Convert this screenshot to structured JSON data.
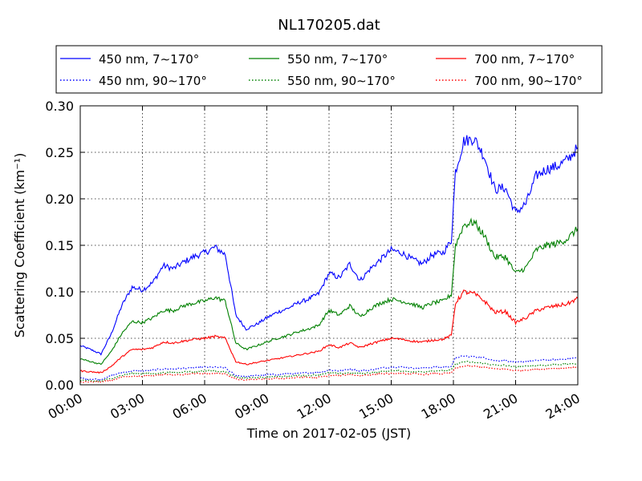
{
  "chart_data": {
    "type": "line",
    "title": "NL170205.dat",
    "xlabel": "Time on 2017-02-05 (JST)",
    "ylabel": "Scattering Coefficient (km⁻¹)",
    "x_unit": "hour",
    "xlim": [
      0,
      24
    ],
    "ylim": [
      0,
      0.3
    ],
    "x_tick_labels": [
      "00:00",
      "03:00",
      "06:00",
      "09:00",
      "12:00",
      "15:00",
      "18:00",
      "21:00",
      "24:00"
    ],
    "y_tick_labels": [
      "0.00",
      "0.05",
      "0.10",
      "0.15",
      "0.20",
      "0.25",
      "0.30"
    ],
    "grid": true,
    "legend_position": "top",
    "x": [
      0,
      0.5,
      1,
      1.5,
      2,
      2.5,
      3,
      3.5,
      4,
      4.5,
      5,
      5.5,
      6,
      6.5,
      7,
      7.5,
      8,
      8.5,
      9,
      9.5,
      10,
      10.5,
      11,
      11.5,
      12,
      12.5,
      13,
      13.5,
      14,
      14.5,
      15,
      15.5,
      16,
      16.5,
      17,
      17.5,
      17.9,
      18.1,
      18.5,
      19,
      19.5,
      20,
      20.5,
      21,
      21.5,
      22,
      22.5,
      23,
      23.5,
      24
    ],
    "series": [
      {
        "name": "450 nm, 7∼170°",
        "color": "#0000ff",
        "style": "solid",
        "values": [
          0.042,
          0.038,
          0.033,
          0.055,
          0.085,
          0.105,
          0.102,
          0.11,
          0.128,
          0.125,
          0.132,
          0.138,
          0.142,
          0.148,
          0.14,
          0.075,
          0.06,
          0.065,
          0.072,
          0.078,
          0.082,
          0.088,
          0.092,
          0.098,
          0.12,
          0.115,
          0.13,
          0.112,
          0.125,
          0.135,
          0.145,
          0.142,
          0.135,
          0.13,
          0.14,
          0.142,
          0.155,
          0.23,
          0.262,
          0.265,
          0.245,
          0.21,
          0.212,
          0.185,
          0.195,
          0.225,
          0.232,
          0.235,
          0.242,
          0.255
        ]
      },
      {
        "name": "450 nm, 90∼170°",
        "color": "#0000ff",
        "style": "dotted",
        "values": [
          0.007,
          0.006,
          0.006,
          0.01,
          0.013,
          0.015,
          0.015,
          0.016,
          0.017,
          0.017,
          0.018,
          0.018,
          0.019,
          0.019,
          0.018,
          0.01,
          0.009,
          0.01,
          0.011,
          0.011,
          0.012,
          0.012,
          0.013,
          0.013,
          0.016,
          0.015,
          0.017,
          0.015,
          0.016,
          0.018,
          0.019,
          0.019,
          0.018,
          0.018,
          0.019,
          0.019,
          0.02,
          0.029,
          0.031,
          0.03,
          0.029,
          0.026,
          0.026,
          0.024,
          0.025,
          0.026,
          0.027,
          0.027,
          0.028,
          0.029
        ]
      },
      {
        "name": "550 nm, 7∼170°",
        "color": "#008000",
        "style": "solid",
        "values": [
          0.028,
          0.025,
          0.022,
          0.036,
          0.055,
          0.068,
          0.067,
          0.072,
          0.08,
          0.08,
          0.085,
          0.088,
          0.09,
          0.094,
          0.09,
          0.045,
          0.038,
          0.042,
          0.046,
          0.05,
          0.053,
          0.057,
          0.06,
          0.064,
          0.08,
          0.075,
          0.085,
          0.073,
          0.082,
          0.088,
          0.092,
          0.09,
          0.087,
          0.083,
          0.088,
          0.09,
          0.097,
          0.15,
          0.172,
          0.175,
          0.16,
          0.137,
          0.138,
          0.12,
          0.126,
          0.145,
          0.15,
          0.152,
          0.157,
          0.168
        ]
      },
      {
        "name": "550 nm, 90∼170°",
        "color": "#008000",
        "style": "dotted",
        "values": [
          0.005,
          0.004,
          0.004,
          0.007,
          0.01,
          0.012,
          0.012,
          0.012,
          0.013,
          0.013,
          0.014,
          0.014,
          0.015,
          0.015,
          0.014,
          0.008,
          0.007,
          0.008,
          0.008,
          0.009,
          0.009,
          0.01,
          0.01,
          0.011,
          0.013,
          0.012,
          0.013,
          0.012,
          0.013,
          0.014,
          0.015,
          0.015,
          0.014,
          0.014,
          0.015,
          0.015,
          0.016,
          0.022,
          0.025,
          0.024,
          0.023,
          0.021,
          0.021,
          0.019,
          0.02,
          0.021,
          0.021,
          0.022,
          0.022,
          0.023
        ]
      },
      {
        "name": "700 nm, 7∼170°",
        "color": "#ff0000",
        "style": "solid",
        "values": [
          0.015,
          0.014,
          0.013,
          0.02,
          0.03,
          0.038,
          0.038,
          0.04,
          0.046,
          0.045,
          0.047,
          0.049,
          0.05,
          0.052,
          0.05,
          0.025,
          0.022,
          0.024,
          0.026,
          0.028,
          0.03,
          0.032,
          0.034,
          0.036,
          0.043,
          0.04,
          0.045,
          0.04,
          0.044,
          0.047,
          0.05,
          0.049,
          0.047,
          0.046,
          0.048,
          0.049,
          0.053,
          0.088,
          0.1,
          0.098,
          0.09,
          0.078,
          0.079,
          0.067,
          0.072,
          0.08,
          0.083,
          0.085,
          0.087,
          0.093
        ]
      },
      {
        "name": "700 nm, 90∼170°",
        "color": "#ff0000",
        "style": "dotted",
        "values": [
          0.003,
          0.003,
          0.003,
          0.005,
          0.008,
          0.009,
          0.009,
          0.01,
          0.011,
          0.011,
          0.011,
          0.012,
          0.012,
          0.012,
          0.012,
          0.006,
          0.005,
          0.006,
          0.006,
          0.007,
          0.007,
          0.008,
          0.008,
          0.008,
          0.01,
          0.01,
          0.011,
          0.01,
          0.011,
          0.012,
          0.012,
          0.012,
          0.012,
          0.011,
          0.012,
          0.012,
          0.013,
          0.018,
          0.02,
          0.02,
          0.019,
          0.017,
          0.017,
          0.015,
          0.016,
          0.017,
          0.017,
          0.018,
          0.018,
          0.019
        ]
      }
    ]
  }
}
